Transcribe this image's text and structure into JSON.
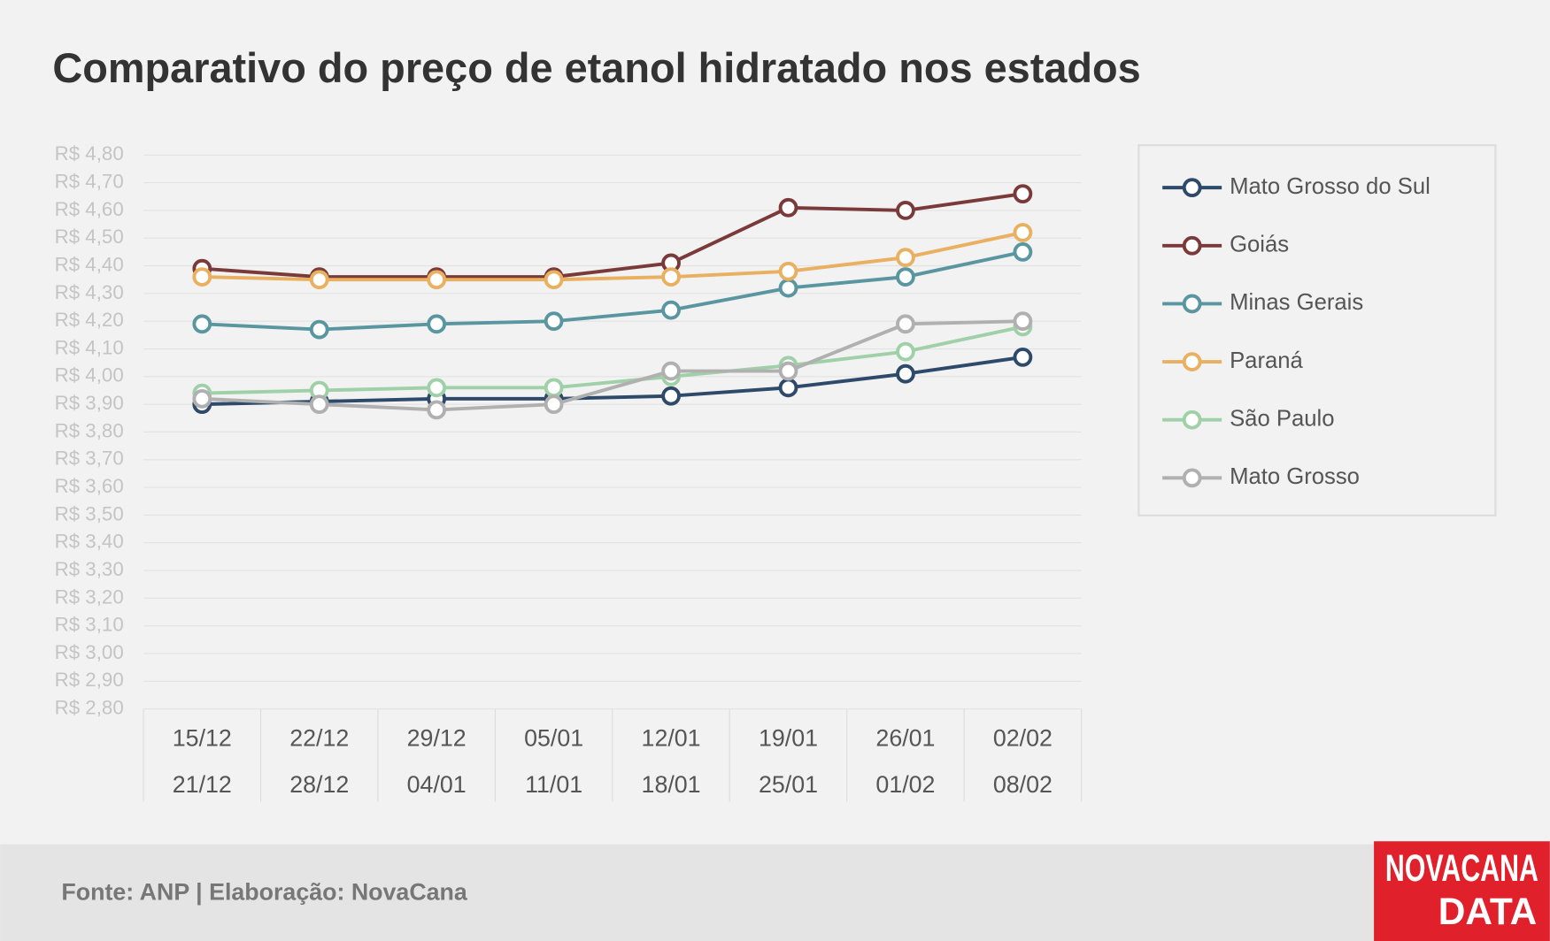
{
  "chart_data": {
    "type": "line",
    "title": "Comparativo do preço de etanol hidratado nos estados",
    "categories": [
      [
        "15/12",
        "21/12"
      ],
      [
        "22/12",
        "28/12"
      ],
      [
        "29/12",
        "04/01"
      ],
      [
        "05/01",
        "11/01"
      ],
      [
        "12/01",
        "18/01"
      ],
      [
        "19/01",
        "25/01"
      ],
      [
        "26/01",
        "01/02"
      ],
      [
        "02/02",
        "08/02"
      ]
    ],
    "series": [
      {
        "name": "Mato Grosso do Sul",
        "color": "#2e4a6b",
        "values": [
          3.9,
          3.91,
          3.92,
          3.92,
          3.93,
          3.96,
          4.01,
          4.07
        ]
      },
      {
        "name": "Goiás",
        "color": "#7a3a3a",
        "values": [
          4.39,
          4.36,
          4.36,
          4.36,
          4.41,
          4.61,
          4.6,
          4.66
        ]
      },
      {
        "name": "Minas Gerais",
        "color": "#5a96a0",
        "values": [
          4.19,
          4.17,
          4.19,
          4.2,
          4.24,
          4.32,
          4.36,
          4.45
        ]
      },
      {
        "name": "Paraná",
        "color": "#e8b060",
        "values": [
          4.36,
          4.35,
          4.35,
          4.35,
          4.36,
          4.38,
          4.43,
          4.52
        ]
      },
      {
        "name": "São Paulo",
        "color": "#9fd0a8",
        "values": [
          3.94,
          3.95,
          3.96,
          3.96,
          4.0,
          4.04,
          4.09,
          4.18
        ]
      },
      {
        "name": "Mato Grosso",
        "color": "#b0b0b0",
        "values": [
          3.92,
          3.9,
          3.88,
          3.9,
          4.02,
          4.02,
          4.19,
          4.2
        ]
      }
    ],
    "ylim": [
      2.8,
      4.8
    ],
    "yticks": [
      {
        "value": 4.8,
        "label": "R$ 4,80"
      },
      {
        "value": 4.7,
        "label": "R$ 4,70"
      },
      {
        "value": 4.6,
        "label": "R$ 4,60"
      },
      {
        "value": 4.5,
        "label": "R$ 4,50"
      },
      {
        "value": 4.4,
        "label": "R$ 4,40"
      },
      {
        "value": 4.3,
        "label": "R$ 4,30"
      },
      {
        "value": 4.2,
        "label": "R$ 4,20"
      },
      {
        "value": 4.1,
        "label": "R$ 4,10"
      },
      {
        "value": 4.0,
        "label": "R$ 4,00"
      },
      {
        "value": 3.9,
        "label": "R$ 3,90"
      },
      {
        "value": 3.8,
        "label": "R$ 3,80"
      },
      {
        "value": 3.7,
        "label": "R$ 3,70"
      },
      {
        "value": 3.6,
        "label": "R$ 3,60"
      },
      {
        "value": 3.5,
        "label": "R$ 3,50"
      },
      {
        "value": 3.4,
        "label": "R$ 3,40"
      },
      {
        "value": 3.3,
        "label": "R$ 3,30"
      },
      {
        "value": 3.2,
        "label": "R$ 3,20"
      },
      {
        "value": 3.1,
        "label": "R$ 3,10"
      },
      {
        "value": 3.0,
        "label": "R$ 3,00"
      },
      {
        "value": 2.9,
        "label": "R$ 2,90"
      },
      {
        "value": 2.8,
        "label": "R$ 2,80"
      }
    ],
    "grid": true,
    "legend": "right"
  },
  "footer": {
    "source": "Fonte: ANP | Elaboração: NovaCana",
    "logo": [
      "NOVACANA",
      "DATA"
    ]
  }
}
